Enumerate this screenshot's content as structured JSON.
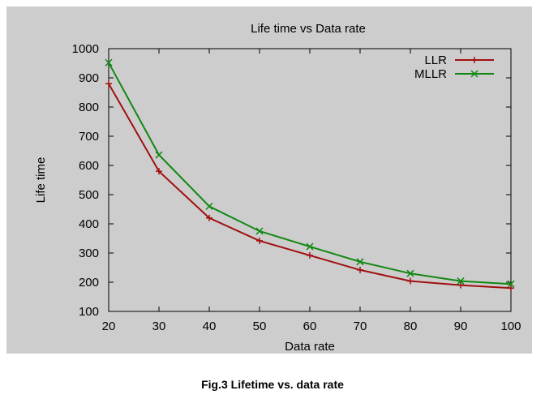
{
  "chart_data": {
    "type": "line",
    "title": "Life time vs Data rate",
    "xlabel": "Data rate",
    "ylabel": "Life time",
    "x": [
      20,
      30,
      40,
      50,
      60,
      70,
      80,
      90,
      100
    ],
    "xlim": [
      20,
      100
    ],
    "ylim": [
      100,
      1000
    ],
    "xticks": [
      "20",
      "30",
      "40",
      "50",
      "60",
      "70",
      "80",
      "90",
      "100"
    ],
    "yticks": [
      "100",
      "200",
      "300",
      "400",
      "500",
      "600",
      "700",
      "800",
      "900",
      "1000"
    ],
    "grid": false,
    "legend_position": "top-right",
    "series": [
      {
        "name": "LLR",
        "color": "#a01010",
        "marker": "plus",
        "values": [
          880,
          580,
          420,
          342,
          292,
          242,
          204,
          190,
          180
        ]
      },
      {
        "name": "MLLR",
        "color": "#118811",
        "marker": "x",
        "values": [
          952,
          636,
          460,
          375,
          322,
          270,
          230,
          204,
          194
        ]
      }
    ]
  },
  "caption": "Fig.3 Lifetime vs. data rate"
}
